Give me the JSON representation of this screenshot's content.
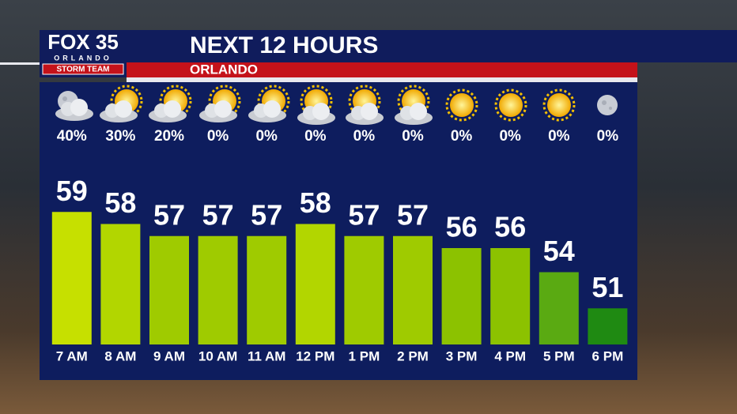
{
  "logo": {
    "brand": "FOX 35",
    "city": "ORLANDO",
    "team": "STORM TEAM"
  },
  "chart_data": {
    "type": "bar",
    "title": "NEXT 12 HOURS",
    "subtitle": "ORLANDO",
    "categories": [
      "7 AM",
      "8 AM",
      "9 AM",
      "10 AM",
      "11 AM",
      "12 PM",
      "1 PM",
      "2 PM",
      "3 PM",
      "4 PM",
      "5 PM",
      "6 PM"
    ],
    "values": [
      59,
      58,
      57,
      57,
      57,
      58,
      57,
      57,
      56,
      56,
      54,
      51
    ],
    "colors": [
      "#c6e000",
      "#b2d600",
      "#9fcb00",
      "#9fcb00",
      "#9fcb00",
      "#b2d600",
      "#9fcb00",
      "#9fcb00",
      "#8cc200",
      "#8cc200",
      "#5aaa12",
      "#1f8a12"
    ],
    "ylim": [
      48,
      60
    ],
    "precipitation_chance": {
      "values": [
        40,
        30,
        20,
        0,
        0,
        0,
        0,
        0,
        0,
        0,
        0,
        0
      ],
      "value_labels": [
        "40%",
        "30%",
        "20%",
        "0%",
        "0%",
        "0%",
        "0%",
        "0%",
        "0%",
        "0%",
        "0%",
        "0%"
      ]
    }
  }
}
